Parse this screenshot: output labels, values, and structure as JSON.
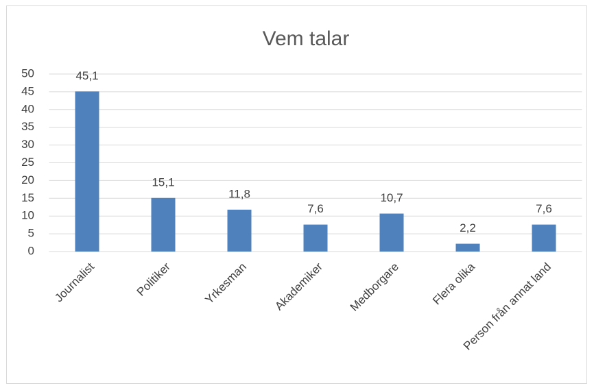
{
  "chart_data": {
    "type": "bar",
    "title": "Vem talar",
    "categories": [
      "Journalist",
      "Politiker",
      "Yrkesman",
      "Akademiker",
      "Medborgare",
      "Flera olika",
      "Person från annat land"
    ],
    "values": [
      45.1,
      15.1,
      11.8,
      7.6,
      10.7,
      2.2,
      7.6
    ],
    "value_labels": [
      "45,1",
      "15,1",
      "11,8",
      "7,6",
      "10,7",
      "2,2",
      "7,6"
    ],
    "color": "#4f81bd",
    "ylim": [
      0,
      50
    ],
    "yticks": [
      0,
      5,
      10,
      15,
      20,
      25,
      30,
      35,
      40,
      45,
      50
    ],
    "grid": true
  }
}
